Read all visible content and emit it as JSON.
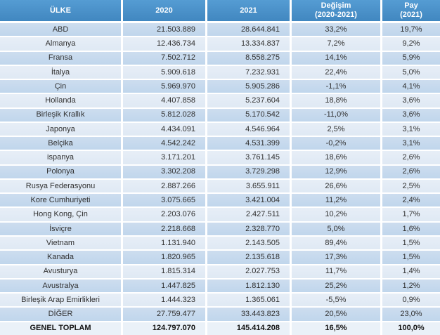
{
  "table": {
    "columns": [
      {
        "label": "ÜLKE"
      },
      {
        "label": "2020"
      },
      {
        "label": "2021"
      },
      {
        "label": "Değişim",
        "label2": "(2020-2021)"
      },
      {
        "label": "Pay",
        "label2": "(2021)"
      }
    ],
    "rows": [
      {
        "country": "ABD",
        "y2020": "21.503.889",
        "y2021": "28.644.841",
        "change": "33,2%",
        "share": "19,7%"
      },
      {
        "country": "Almanya",
        "y2020": "12.436.734",
        "y2021": "13.334.837",
        "change": "7,2%",
        "share": "9,2%"
      },
      {
        "country": "Fransa",
        "y2020": "7.502.712",
        "y2021": "8.558.275",
        "change": "14,1%",
        "share": "5,9%"
      },
      {
        "country": "İtalya",
        "y2020": "5.909.618",
        "y2021": "7.232.931",
        "change": "22,4%",
        "share": "5,0%"
      },
      {
        "country": "Çin",
        "y2020": "5.969.970",
        "y2021": "5.905.286",
        "change": "-1,1%",
        "share": "4,1%"
      },
      {
        "country": "Hollanda",
        "y2020": "4.407.858",
        "y2021": "5.237.604",
        "change": "18,8%",
        "share": "3,6%"
      },
      {
        "country": "Birleşik Krallık",
        "y2020": "5.812.028",
        "y2021": "5.170.542",
        "change": "-11,0%",
        "share": "3,6%"
      },
      {
        "country": "Japonya",
        "y2020": "4.434.091",
        "y2021": "4.546.964",
        "change": "2,5%",
        "share": "3,1%"
      },
      {
        "country": "Belçika",
        "y2020": "4.542.242",
        "y2021": "4.531.399",
        "change": "-0,2%",
        "share": "3,1%"
      },
      {
        "country": "ispanya",
        "y2020": "3.171.201",
        "y2021": "3.761.145",
        "change": "18,6%",
        "share": "2,6%"
      },
      {
        "country": "Polonya",
        "y2020": "3.302.208",
        "y2021": "3.729.298",
        "change": "12,9%",
        "share": "2,6%"
      },
      {
        "country": "Rusya Federasyonu",
        "y2020": "2.887.266",
        "y2021": "3.655.911",
        "change": "26,6%",
        "share": "2,5%"
      },
      {
        "country": "Kore Cumhuriyeti",
        "y2020": "3.075.665",
        "y2021": "3.421.004",
        "change": "11,2%",
        "share": "2,4%"
      },
      {
        "country": "Hong Kong, Çin",
        "y2020": "2.203.076",
        "y2021": "2.427.511",
        "change": "10,2%",
        "share": "1,7%"
      },
      {
        "country": "İsviçre",
        "y2020": "2.218.668",
        "y2021": "2.328.770",
        "change": "5,0%",
        "share": "1,6%"
      },
      {
        "country": "Vietnam",
        "y2020": "1.131.940",
        "y2021": "2.143.505",
        "change": "89,4%",
        "share": "1,5%"
      },
      {
        "country": "Kanada",
        "y2020": "1.820.965",
        "y2021": "2.135.618",
        "change": "17,3%",
        "share": "1,5%"
      },
      {
        "country": "Avusturya",
        "y2020": "1.815.314",
        "y2021": "2.027.753",
        "change": "11,7%",
        "share": "1,4%"
      },
      {
        "country": "Avustralya",
        "y2020": "1.447.825",
        "y2021": "1.812.130",
        "change": "25,2%",
        "share": "1,2%"
      },
      {
        "country": "Birleşik Arap Emirlikleri",
        "y2020": "1.444.323",
        "y2021": "1.365.061",
        "change": "-5,5%",
        "share": "0,9%"
      },
      {
        "country": "DİĞER",
        "y2020": "27.759.477",
        "y2021": "33.443.823",
        "change": "20,5%",
        "share": "23,0%"
      },
      {
        "country": "GENEL TOPLAM",
        "y2020": "124.797.070",
        "y2021": "145.414.208",
        "change": "16,5%",
        "share": "100,0%",
        "emphasis": "total"
      }
    ]
  },
  "colors": {
    "header_bg": "#4A8FC7",
    "row_dark": "#C3D9ED",
    "row_light": "#E2EBF5",
    "row_total": "#EAF1F8",
    "header_text": "#FFFFFF",
    "body_text": "#303030",
    "separator": "#FFFFFF"
  }
}
